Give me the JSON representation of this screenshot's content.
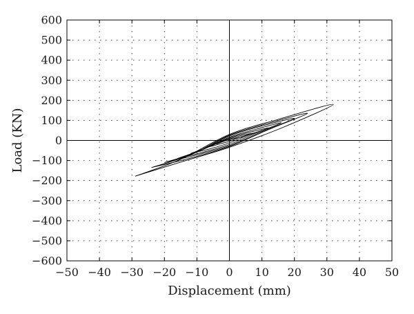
{
  "chart_data": {
    "type": "line",
    "xlabel": "Displacement (mm)",
    "ylabel": "Load (KN)",
    "xlim": [
      -50,
      50
    ],
    "ylim": [
      -600,
      600
    ],
    "xticks": [
      -50,
      -40,
      -30,
      -20,
      -10,
      0,
      10,
      20,
      30,
      40,
      50
    ],
    "yticks": [
      600,
      500,
      400,
      300,
      200,
      100,
      0,
      -100,
      -200,
      -300,
      -400,
      -500,
      -600
    ],
    "xtick_labels": [
      "−50",
      "−40",
      "−30",
      "−20",
      "−10",
      "0",
      "10",
      "20",
      "30",
      "40",
      "50"
    ],
    "ytick_labels": [
      "600",
      "500",
      "400",
      "300",
      "200",
      "100",
      "0",
      "−100",
      "−200",
      "−300",
      "−400",
      "−500",
      "−600"
    ],
    "grid": "dotted",
    "zero_lines": true,
    "series_style": "hysteresis loops",
    "series": [
      {
        "values": [
          [
            -4,
            -18
          ],
          [
            -2,
            -5
          ],
          [
            0,
            3
          ],
          [
            2,
            12
          ],
          [
            4,
            18
          ],
          [
            2,
            12
          ],
          [
            0,
            4
          ],
          [
            -2,
            -6
          ],
          [
            -4,
            -18
          ]
        ]
      },
      {
        "values": [
          [
            -8,
            -40
          ],
          [
            -4,
            -14
          ],
          [
            0,
            8
          ],
          [
            4,
            26
          ],
          [
            8,
            38
          ],
          [
            4,
            20
          ],
          [
            0,
            -4
          ],
          [
            -4,
            -22
          ],
          [
            -8,
            -40
          ]
        ]
      },
      {
        "values": [
          [
            -12,
            -65
          ],
          [
            -6,
            -30
          ],
          [
            0,
            12
          ],
          [
            6,
            40
          ],
          [
            12,
            62
          ],
          [
            6,
            28
          ],
          [
            0,
            -12
          ],
          [
            -6,
            -42
          ],
          [
            -12,
            -65
          ]
        ]
      },
      {
        "values": [
          [
            -16,
            -90
          ],
          [
            -8,
            -44
          ],
          [
            0,
            16
          ],
          [
            8,
            55
          ],
          [
            16,
            88
          ],
          [
            8,
            36
          ],
          [
            0,
            -20
          ],
          [
            -8,
            -58
          ],
          [
            -16,
            -90
          ]
        ]
      },
      {
        "values": [
          [
            -20,
            -110
          ],
          [
            -10,
            -58
          ],
          [
            0,
            22
          ],
          [
            10,
            72
          ],
          [
            20,
            110
          ],
          [
            10,
            44
          ],
          [
            0,
            -26
          ],
          [
            -10,
            -72
          ],
          [
            -20,
            -110
          ]
        ]
      },
      {
        "values": [
          [
            -24,
            -135
          ],
          [
            -12,
            -72
          ],
          [
            0,
            26
          ],
          [
            12,
            86
          ],
          [
            24,
            135
          ],
          [
            12,
            54
          ],
          [
            0,
            -30
          ],
          [
            -12,
            -88
          ],
          [
            -24,
            -135
          ]
        ]
      },
      {
        "values": [
          [
            -29,
            -178
          ],
          [
            -15,
            -94
          ],
          [
            0,
            30
          ],
          [
            15,
            105
          ],
          [
            32,
            180
          ],
          [
            16,
            62
          ],
          [
            0,
            -34
          ],
          [
            -15,
            -108
          ],
          [
            -29,
            -178
          ]
        ]
      }
    ]
  }
}
